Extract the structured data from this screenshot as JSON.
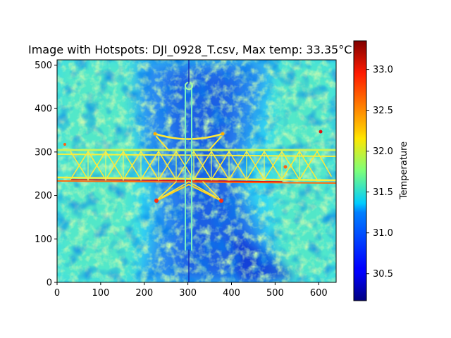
{
  "chart_data": {
    "type": "heatmap",
    "title": "Image with Hotspots: DJI_0928_T.csv, Max temp: 33.35°C",
    "xlabel": "",
    "ylabel": "",
    "xlim": [
      0,
      640
    ],
    "ylim": [
      0,
      512
    ],
    "x_ticks": [
      0,
      100,
      200,
      300,
      400,
      500,
      600
    ],
    "y_ticks": [
      0,
      100,
      200,
      300,
      400,
      500
    ],
    "colormap": "jet",
    "colorbar": {
      "label": "Temperature",
      "vmin": 30.17,
      "vmax": 33.35,
      "ticks": [
        30.5,
        31.0,
        31.5,
        32.0,
        32.5,
        33.0
      ]
    },
    "image_description": "Thermal image of a steel truss bridge seen from above, crossing a river; cooler (blue) water in the center, warmer (cyan/green/yellow) vegetation on both sides; bridge structure appears warm (yellow/red)."
  }
}
